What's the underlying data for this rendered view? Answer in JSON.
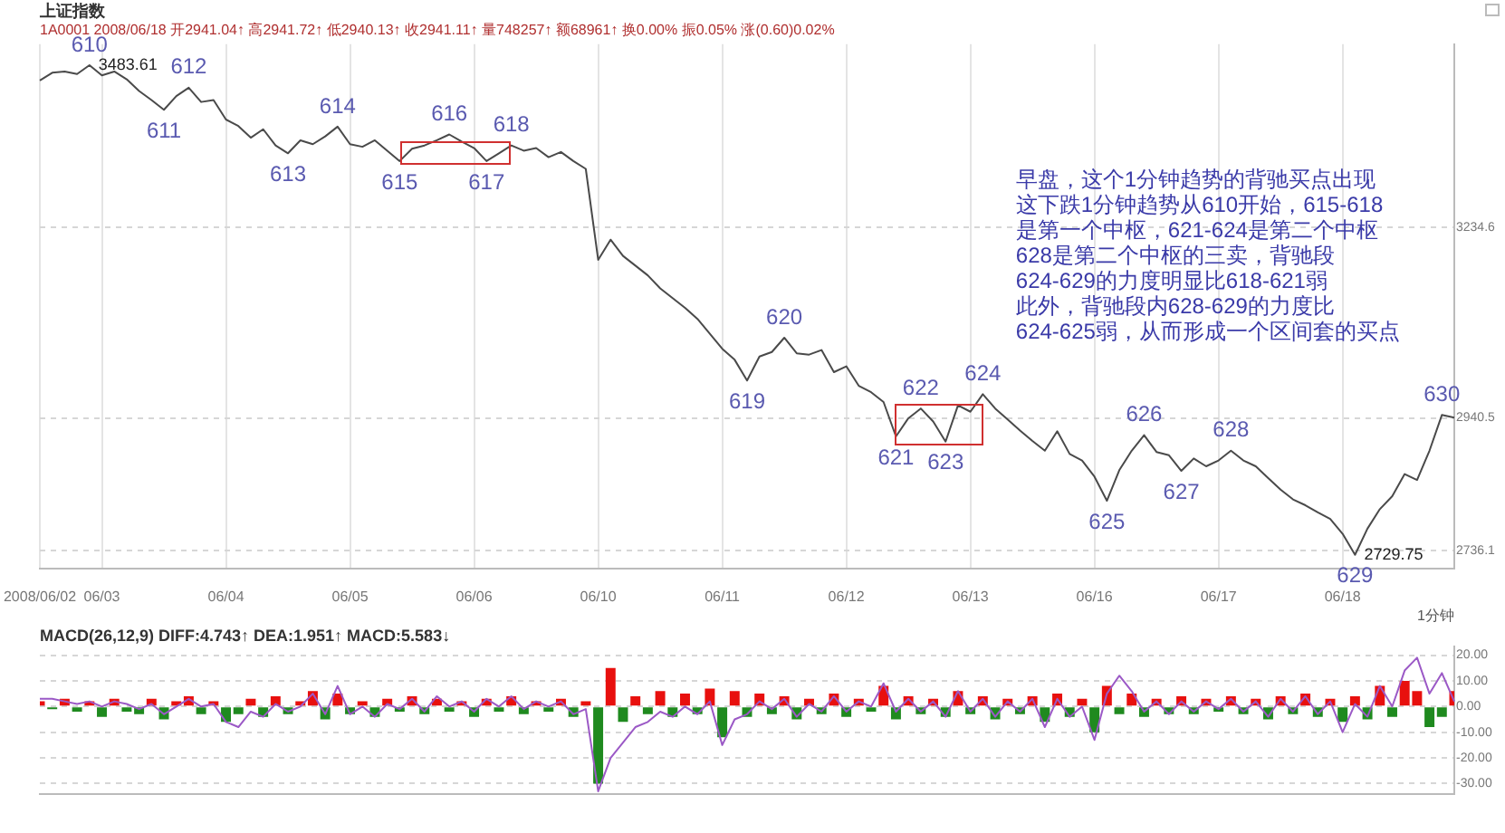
{
  "chart_data": [
    {
      "type": "line",
      "title": "上证指数",
      "subtitle": "1A0001 2008/06/18 开2941.04↑ 高2941.72↑ 低2940.13↑ 收2941.11↑ 量748257↑ 额68961↑ 换0.00% 振0.05% 涨(0.60)0.02%",
      "xlabel": "1分钟",
      "color": "#4a4a4a",
      "marker": "none",
      "grid": true,
      "categories": [
        "2008/06/02",
        null,
        null,
        null,
        null,
        "06/03",
        null,
        null,
        null,
        null,
        null,
        null,
        null,
        null,
        null,
        "06/04",
        null,
        null,
        null,
        null,
        null,
        null,
        null,
        null,
        null,
        "06/05",
        null,
        null,
        null,
        null,
        null,
        null,
        null,
        null,
        null,
        "06/06",
        null,
        null,
        null,
        null,
        null,
        null,
        null,
        null,
        null,
        "06/10",
        null,
        null,
        null,
        null,
        null,
        null,
        null,
        null,
        null,
        "06/11",
        null,
        null,
        null,
        null,
        null,
        null,
        null,
        null,
        null,
        "06/12",
        null,
        null,
        null,
        null,
        null,
        null,
        null,
        null,
        null,
        "06/13",
        null,
        null,
        null,
        null,
        null,
        null,
        null,
        null,
        null,
        "06/16",
        null,
        null,
        null,
        null,
        null,
        null,
        null,
        null,
        null,
        "06/17",
        null,
        null,
        null,
        null,
        null,
        null,
        null,
        null,
        null,
        "06/18",
        null,
        null,
        null,
        null,
        null,
        null,
        null,
        null,
        null
      ],
      "values": [
        3460,
        3472,
        3474,
        3470,
        3483.61,
        3468,
        3474,
        3462,
        3444,
        3430,
        3415,
        3436,
        3449,
        3427,
        3430,
        3400,
        3390,
        3372,
        3385,
        3360,
        3348,
        3368,
        3362,
        3374,
        3389,
        3362,
        3358,
        3368,
        3352,
        3336,
        3355,
        3360,
        3368,
        3377,
        3366,
        3356,
        3336,
        3348,
        3360,
        3352,
        3356,
        3342,
        3350,
        3336,
        3324,
        3184,
        3215,
        3190,
        3175,
        3160,
        3140,
        3125,
        3110,
        3093,
        3070,
        3047,
        3030,
        2998,
        3035,
        3042,
        3064,
        3040,
        3038,
        3045,
        3011,
        3020,
        2990,
        2980,
        2965,
        2912,
        2940,
        2955,
        2935,
        2904,
        2960,
        2950,
        2977,
        2955,
        2938,
        2921,
        2905,
        2890,
        2920,
        2885,
        2875,
        2850,
        2813,
        2860,
        2890,
        2914,
        2888,
        2883,
        2859,
        2878,
        2866,
        2875,
        2890,
        2875,
        2866,
        2848,
        2830,
        2815,
        2806,
        2795,
        2785,
        2762,
        2729.75,
        2770,
        2800,
        2820,
        2854,
        2845,
        2890,
        2945,
        2941
      ],
      "value_labels": [
        null,
        null,
        null,
        null,
        "3483.61",
        null,
        null,
        null,
        null,
        null,
        null,
        null,
        null,
        null,
        null,
        null,
        null,
        null,
        null,
        null,
        null,
        null,
        null,
        null,
        null,
        null,
        null,
        null,
        null,
        null,
        null,
        null,
        null,
        null,
        null,
        null,
        null,
        null,
        null,
        null,
        null,
        null,
        null,
        null,
        null,
        null,
        null,
        null,
        null,
        null,
        null,
        null,
        null,
        null,
        null,
        null,
        null,
        null,
        null,
        null,
        null,
        null,
        null,
        null,
        null,
        null,
        null,
        null,
        null,
        null,
        null,
        null,
        null,
        null,
        null,
        null,
        null,
        null,
        null,
        null,
        null,
        null,
        null,
        null,
        null,
        null,
        null,
        null,
        null,
        null,
        null,
        null,
        null,
        null,
        null,
        null,
        null,
        null,
        null,
        null,
        null,
        null,
        null,
        null,
        null,
        null,
        "2729.75",
        null,
        null,
        null,
        null,
        null,
        null,
        null,
        null
      ],
      "ylim": [
        2709,
        3516
      ],
      "yticks": [
        2736.1,
        2940.5,
        3234.6
      ],
      "annotations": [
        {
          "text": "610",
          "y": 3483.61
        },
        {
          "text": "611",
          "y": 3415
        },
        {
          "text": "612",
          "y": 3449
        },
        {
          "text": "613",
          "y": 3348
        },
        {
          "text": "614",
          "y": 3389
        },
        {
          "text": "615",
          "y": 3336
        },
        {
          "text": "616",
          "y": 3377
        },
        {
          "text": "617",
          "y": 3336
        },
        {
          "text": "618",
          "y": 3360
        },
        {
          "text": "619",
          "y": 2998
        },
        {
          "text": "620",
          "y": 3064
        },
        {
          "text": "621",
          "y": 2912
        },
        {
          "text": "622",
          "y": 2955
        },
        {
          "text": "623",
          "y": 2904
        },
        {
          "text": "624",
          "y": 2977
        },
        {
          "text": "625",
          "y": 2813
        },
        {
          "text": "626",
          "y": 2914
        },
        {
          "text": "627",
          "y": 2859
        },
        {
          "text": "628",
          "y": 2890
        },
        {
          "text": "629",
          "y": 2729.75
        },
        {
          "text": "630",
          "y": 2945
        },
        "早盘，这个1分钟趋势的背驰买点出现",
        "这下跌1分钟趋势从610开始，615-618",
        "是第一个中枢，621-624是第二个中枢",
        "628是第二个中枢的三卖，背驰段",
        "624-629的力度明显比618-621弱",
        "此外，背驰段内628-629的力度比",
        "624-625弱，从而形成一个区间套的买点"
      ]
    },
    {
      "type": "bar",
      "title": "MACD(26,12,9) DIFF:4.743↑ DEA:1.951↑ MACD:5.583↓",
      "marker": "none",
      "grid": "y",
      "categories": [
        null,
        null,
        null,
        null,
        null,
        null,
        null,
        null,
        null,
        null,
        null,
        null,
        null,
        null,
        null,
        null,
        null,
        null,
        null,
        null,
        null,
        null,
        null,
        null,
        null,
        null,
        null,
        null,
        null,
        null,
        null,
        null,
        null,
        null,
        null,
        null,
        null,
        null,
        null,
        null,
        null,
        null,
        null,
        null,
        null,
        null,
        null,
        null,
        null,
        null,
        null,
        null,
        null,
        null,
        null,
        null,
        null,
        null,
        null,
        null,
        null,
        null,
        null,
        null,
        null,
        null,
        null,
        null,
        null,
        null,
        null,
        null,
        null,
        null,
        null,
        null,
        null,
        null,
        null,
        null,
        null,
        null,
        null,
        null,
        null,
        null,
        null,
        null,
        null,
        null,
        null,
        null,
        null,
        null,
        null,
        null,
        null,
        null,
        null,
        null,
        null,
        null,
        null,
        null,
        null,
        null,
        null,
        null,
        null,
        null,
        null,
        null,
        null,
        null,
        null
      ],
      "ylim": [
        -34,
        23.5
      ],
      "yticks": [
        {
          "value": -30,
          "label": "-30.00"
        },
        {
          "value": -20,
          "label": "-20.00"
        },
        {
          "value": -10,
          "label": "-10.00"
        },
        {
          "value": 0,
          "label": "0.00"
        },
        {
          "value": 10,
          "label": "10.00"
        },
        {
          "value": 20,
          "label": "20.00"
        }
      ],
      "series": [
        {
          "color": "#e8100e",
          "values": [
            2,
            null,
            3,
            null,
            2,
            null,
            3,
            null,
            null,
            3,
            null,
            2,
            4,
            null,
            2,
            null,
            null,
            3,
            null,
            4,
            null,
            2,
            6,
            null,
            5,
            null,
            2,
            null,
            3,
            null,
            4,
            null,
            3,
            null,
            2,
            null,
            3,
            null,
            4,
            null,
            2,
            null,
            3,
            null,
            2,
            null,
            15,
            null,
            4,
            null,
            6,
            null,
            5,
            null,
            7,
            null,
            6,
            null,
            5,
            null,
            4,
            null,
            3,
            null,
            5,
            null,
            3,
            null,
            8,
            null,
            4,
            null,
            3,
            null,
            6,
            null,
            4,
            null,
            3,
            null,
            4,
            null,
            5,
            null,
            3,
            null,
            8,
            null,
            5,
            null,
            3,
            null,
            4,
            null,
            3,
            null,
            4,
            null,
            3,
            null,
            4,
            null,
            5,
            null,
            3,
            null,
            4,
            null,
            8,
            null,
            10,
            6,
            null,
            null,
            6
          ]
        },
        {
          "color": "#1f8a1f",
          "values": [
            null,
            -1,
            null,
            -2,
            null,
            -4,
            null,
            -2,
            -3,
            null,
            -5,
            null,
            null,
            -3,
            null,
            -6,
            -3,
            null,
            -4,
            null,
            -3,
            null,
            null,
            -5,
            null,
            -3,
            null,
            -4,
            null,
            -2,
            null,
            -3,
            null,
            -2,
            null,
            -4,
            null,
            -2,
            null,
            -3,
            null,
            -2,
            null,
            -4,
            null,
            -30,
            null,
            -6,
            null,
            -3,
            null,
            -4,
            null,
            -3,
            null,
            -12,
            null,
            -4,
            null,
            -3,
            null,
            -5,
            null,
            -3,
            null,
            -4,
            null,
            -2,
            null,
            -5,
            null,
            -3,
            null,
            -4,
            null,
            -3,
            null,
            -5,
            null,
            -3,
            null,
            -6,
            null,
            -4,
            null,
            -10,
            null,
            -3,
            null,
            -4,
            null,
            -3,
            null,
            -3,
            null,
            -2,
            null,
            -3,
            null,
            -5,
            null,
            -3,
            null,
            -4,
            null,
            -6,
            null,
            -5,
            null,
            -4,
            null,
            null,
            -8,
            -4,
            null
          ]
        },
        {
          "type": "line",
          "color": "#9b59c6",
          "values": [
            3,
            3,
            2,
            1,
            2,
            0,
            2,
            1,
            -1,
            1,
            -3,
            0,
            3,
            0,
            1,
            -6,
            -8,
            -2,
            -4,
            1,
            -2,
            0,
            5,
            -3,
            8,
            -3,
            0,
            -4,
            1,
            -1,
            3,
            -2,
            4,
            0,
            2,
            -2,
            3,
            0,
            4,
            -1,
            2,
            0,
            2,
            -3,
            -1,
            -33,
            -20,
            -14,
            -8,
            -6,
            -2,
            -4,
            0,
            -3,
            2,
            -15,
            -5,
            -3,
            2,
            -1,
            3,
            -4,
            1,
            -2,
            4,
            -2,
            2,
            0,
            9,
            -2,
            3,
            -2,
            2,
            -4,
            6,
            -2,
            3,
            -4,
            2,
            -2,
            3,
            -8,
            3,
            -4,
            0,
            -13,
            5,
            12,
            6,
            -2,
            2,
            -3,
            2,
            -2,
            2,
            -1,
            3,
            -2,
            2,
            -4,
            3,
            -2,
            4,
            -3,
            2,
            -10,
            1,
            -4,
            8,
            0,
            14,
            19,
            5,
            13,
            2
          ]
        }
      ]
    }
  ]
}
